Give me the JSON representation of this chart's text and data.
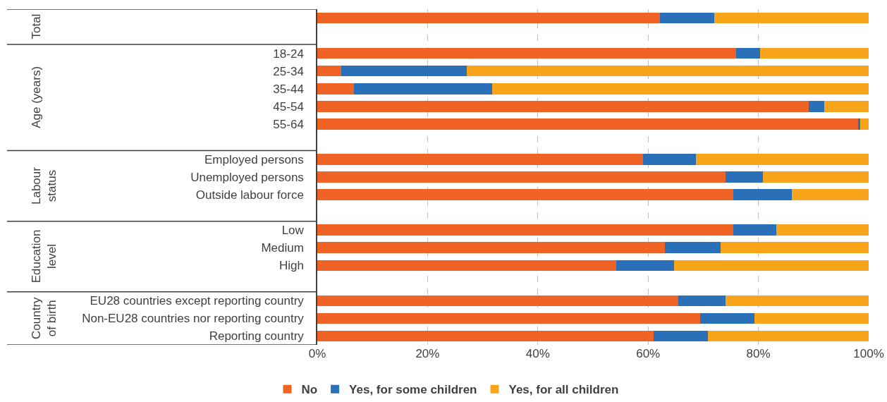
{
  "chart_data": {
    "type": "bar",
    "orientation": "horizontal",
    "stacked": true,
    "categories": [
      null,
      null,
      "18-24",
      "25-34",
      "35-44",
      "45-54",
      "55-64",
      null,
      "Employed persons",
      "Unemployed persons",
      "Outside labour force",
      null,
      "Low",
      "Medium",
      "High",
      null,
      "EU28 countries except reporting country",
      "Non-EU28 countries nor reporting country",
      "Reporting country"
    ],
    "series": [
      {
        "name": "No",
        "color": "#ef6325",
        "values": [
          62.2,
          null,
          75.9,
          4.3,
          6.7,
          89.1,
          98.1,
          null,
          59.1,
          74.1,
          75.4,
          null,
          75.4,
          63.1,
          54.2,
          null,
          65.5,
          69.5,
          61.0
        ]
      },
      {
        "name": "Yes, for some children",
        "color": "#2a70b8",
        "values": [
          9.8,
          null,
          4.4,
          22.8,
          25.0,
          2.8,
          0.4,
          null,
          9.6,
          6.7,
          10.7,
          null,
          7.9,
          10.0,
          10.5,
          null,
          8.5,
          9.8,
          9.8
        ]
      },
      {
        "name": "Yes, for all children",
        "color": "#f9a51b",
        "values": [
          28.0,
          null,
          19.7,
          72.9,
          68.3,
          8.1,
          1.5,
          null,
          31.3,
          19.2,
          13.9,
          null,
          16.7,
          26.9,
          35.3,
          null,
          26.0,
          20.7,
          29.2
        ]
      }
    ],
    "annotations": [
      "Total",
      "Age (years)",
      "Labour\nstatus",
      "Education\nlevel",
      "Country\nof birth"
    ],
    "xlim": [
      0,
      100
    ],
    "xticks": [
      {
        "value": 0,
        "label": "0%"
      },
      {
        "value": 20,
        "label": "20%"
      },
      {
        "value": 40,
        "label": "40%"
      },
      {
        "value": 60,
        "label": "60%"
      },
      {
        "value": 80,
        "label": "80%"
      },
      {
        "value": 100,
        "label": "100%"
      }
    ],
    "grid": "x",
    "legend": "bottom"
  }
}
